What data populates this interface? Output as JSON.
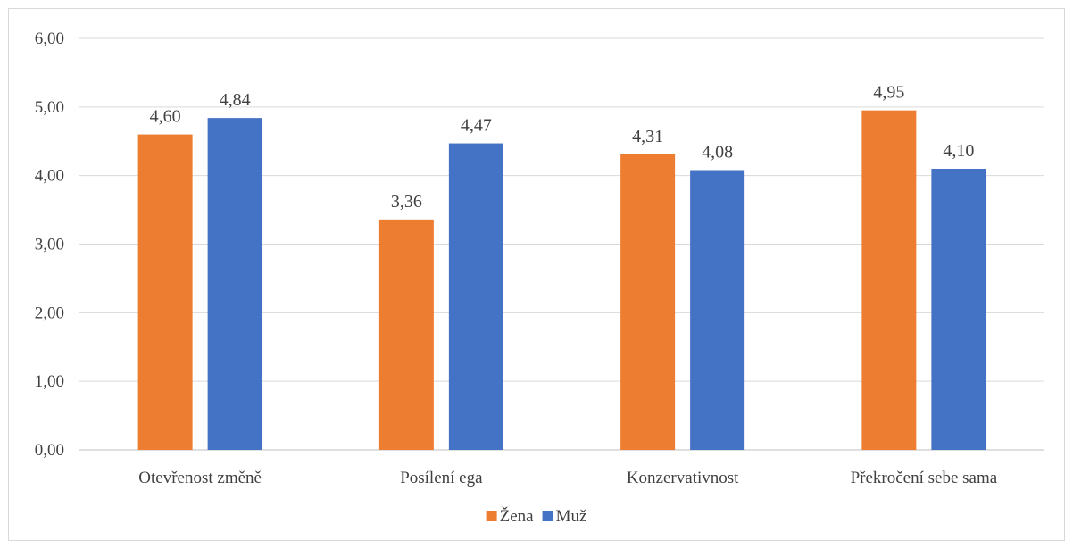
{
  "chart_data": {
    "type": "bar",
    "title": "",
    "xlabel": "",
    "ylabel": "",
    "categories": [
      "Otevřenost změně",
      "Posílení ega",
      "Konzervativnost",
      "Překročení sebe sama"
    ],
    "series": [
      {
        "name": "Žena",
        "color": "#ED7D31",
        "values": [
          4.6,
          3.36,
          4.31,
          4.95
        ]
      },
      {
        "name": "Muž",
        "color": "#4472C4",
        "values": [
          4.84,
          4.47,
          4.08,
          4.1
        ]
      }
    ],
    "ylim": [
      0,
      6
    ],
    "yticks": [
      0,
      1,
      2,
      3,
      4,
      5,
      6
    ],
    "ytick_labels": [
      "0,00",
      "1,00",
      "2,00",
      "3,00",
      "4,00",
      "5,00",
      "6,00"
    ],
    "data_labels": [
      [
        "4,60",
        "3,36",
        "4,31",
        "4,95"
      ],
      [
        "4,84",
        "4,47",
        "4,08",
        "4,10"
      ]
    ],
    "grid": true,
    "legend_position": "bottom"
  }
}
